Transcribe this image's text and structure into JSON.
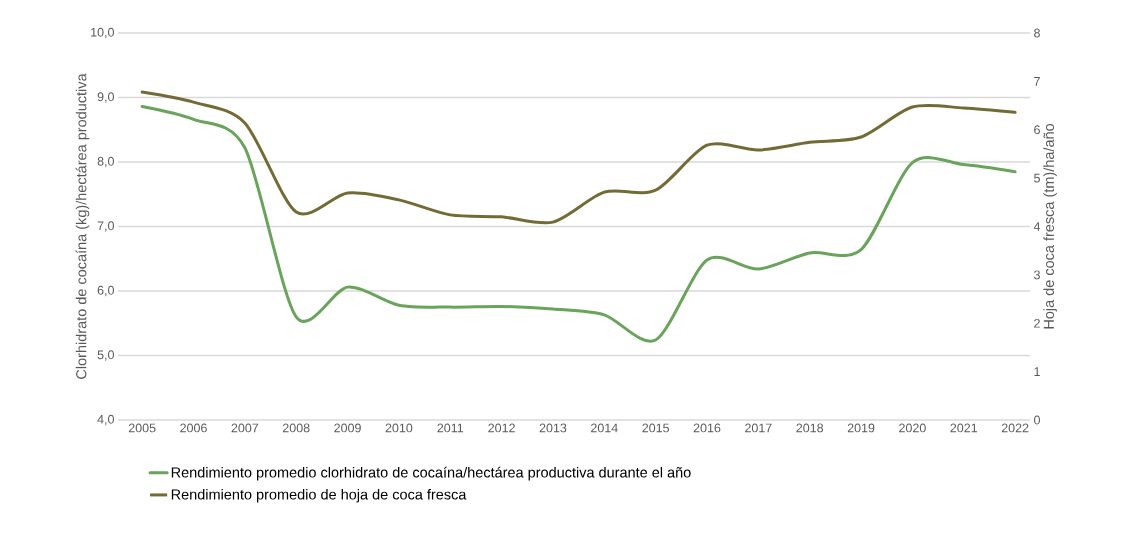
{
  "chart_data": {
    "type": "line",
    "categories": [
      "2005",
      "2006",
      "2007",
      "2008",
      "2009",
      "2010",
      "2011",
      "2012",
      "2013",
      "2014",
      "2015",
      "2016",
      "2017",
      "2018",
      "2019",
      "2020",
      "2021",
      "2022"
    ],
    "series": [
      {
        "name": "Rendimiento promedio clorhidrato de cocaína/hectárea productiva durante el año",
        "color": "#6aa35b",
        "axis": "y",
        "values": [
          8.86,
          8.66,
          8.22,
          5.6,
          6.06,
          5.78,
          5.75,
          5.76,
          5.72,
          5.63,
          5.24,
          6.48,
          6.34,
          6.59,
          6.64,
          7.99,
          7.96,
          7.85
        ]
      },
      {
        "name": "Rendimiento promedio de hoja de coca fresca",
        "color": "#736b36",
        "axis": "y2",
        "values": [
          6.78,
          6.57,
          6.14,
          4.3,
          4.69,
          4.55,
          4.24,
          4.2,
          4.09,
          4.71,
          4.75,
          5.68,
          5.58,
          5.74,
          5.85,
          6.47,
          6.45,
          6.36
        ]
      }
    ],
    "ylabel": "Clorhidrato de cocaína (kg)/hectárea productiva",
    "y2label": "Hoja de coca fresca (tm)/ha/año",
    "ylim": [
      4,
      10
    ],
    "yticks": [
      {
        "value": 4,
        "label": "4,0"
      },
      {
        "value": 5,
        "label": "5,0"
      },
      {
        "value": 6,
        "label": "6,0"
      },
      {
        "value": 7,
        "label": "7,0"
      },
      {
        "value": 8,
        "label": "8,0"
      },
      {
        "value": 9,
        "label": "9,0"
      },
      {
        "value": 10,
        "label": "10,0"
      }
    ],
    "y2lim": [
      0,
      8
    ],
    "y2ticks": [
      0,
      1,
      2,
      3,
      4,
      5,
      6,
      7,
      8
    ],
    "grid": "y",
    "legend": "bottom"
  }
}
